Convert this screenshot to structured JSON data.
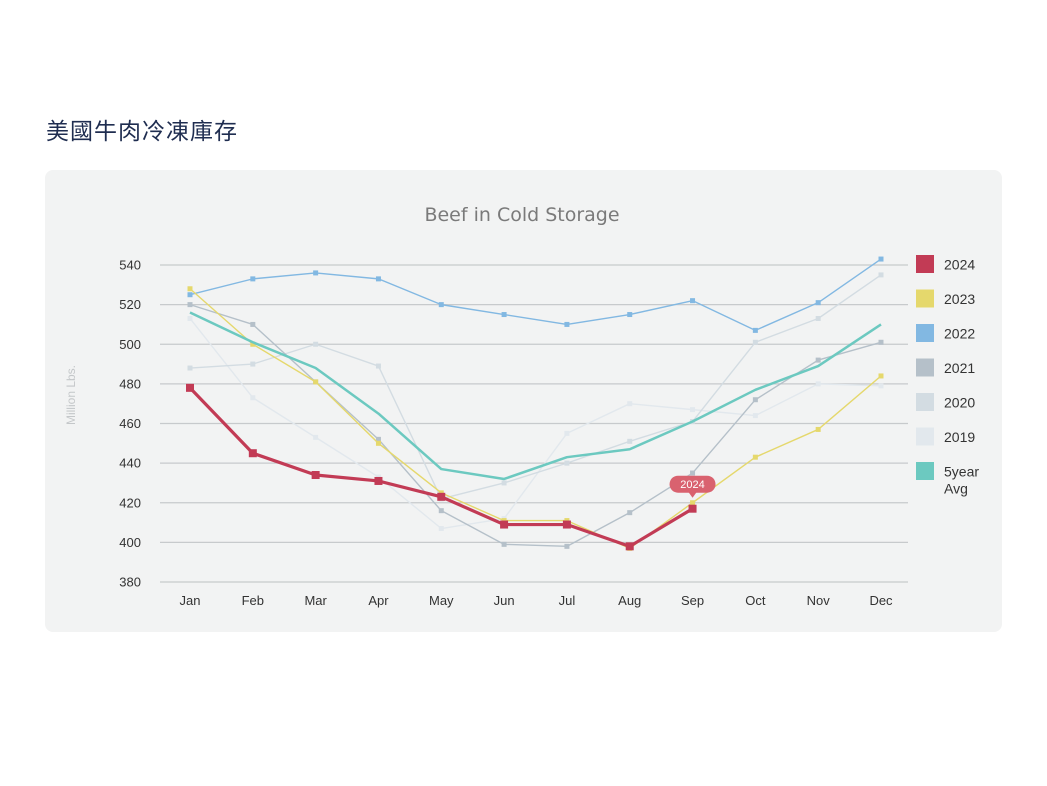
{
  "page": {
    "heading": "美國牛肉冷凍庫存"
  },
  "chart_data": {
    "type": "line",
    "title": "Beef in Cold Storage",
    "ylabel": "Million Lbs.",
    "xlabel": "",
    "ylim": [
      380,
      540
    ],
    "yticks": [
      380,
      400,
      420,
      440,
      460,
      480,
      500,
      520,
      540
    ],
    "grid": true,
    "legend_position": "right",
    "categories": [
      "Jan",
      "Feb",
      "Mar",
      "Apr",
      "May",
      "Jun",
      "Jul",
      "Aug",
      "Sep",
      "Oct",
      "Nov",
      "Dec"
    ],
    "series": [
      {
        "name": "2019",
        "color": "#e2e8ed",
        "values": [
          513,
          473,
          453,
          433,
          407,
          412,
          455,
          470,
          467,
          464,
          480,
          479
        ],
        "marker": true,
        "width": 1.4
      },
      {
        "name": "2020",
        "color": "#d3dce2",
        "values": [
          488,
          490,
          500,
          489,
          422,
          430,
          440,
          451,
          461,
          501,
          513,
          535
        ],
        "marker": true,
        "width": 1.4
      },
      {
        "name": "2021",
        "color": "#b5c0c9",
        "values": [
          520,
          510,
          481,
          452,
          416,
          399,
          398,
          415,
          435,
          472,
          492,
          501
        ],
        "marker": true,
        "width": 1.4
      },
      {
        "name": "2022",
        "color": "#82b8e2",
        "values": [
          525,
          533,
          536,
          533,
          520,
          515,
          510,
          515,
          522,
          507,
          521,
          543
        ],
        "marker": true,
        "width": 1.4
      },
      {
        "name": "2023",
        "color": "#e5d86c",
        "values": [
          528,
          500,
          481,
          450,
          425,
          411,
          411,
          397,
          420,
          443,
          457,
          484
        ],
        "marker": true,
        "width": 1.4
      },
      {
        "name": "5year Avg",
        "color": "#6cc9c0",
        "values": [
          516,
          501,
          488,
          465,
          437,
          432,
          443,
          447,
          461,
          477,
          489,
          510
        ],
        "marker": false,
        "width": 2.5
      },
      {
        "name": "2024",
        "color": "#c23b55",
        "values": [
          478,
          445,
          434,
          431,
          423,
          409,
          409,
          398,
          417,
          null,
          null,
          null
        ],
        "marker": true,
        "width": 3.2
      }
    ],
    "legend": [
      {
        "label": "2024",
        "color": "#c23b55"
      },
      {
        "label": "2023",
        "color": "#e5d86c"
      },
      {
        "label": "2022",
        "color": "#82b8e2"
      },
      {
        "label": "2021",
        "color": "#b5c0c9"
      },
      {
        "label": "2020",
        "color": "#d3dce2"
      },
      {
        "label": "2019",
        "color": "#e2e8ed"
      },
      {
        "label": "5year\nAvg",
        "color": "#6cc9c0"
      }
    ],
    "annotation": {
      "text": "2024",
      "category": "Sep",
      "series": "2024",
      "color": "#d9626f"
    }
  }
}
